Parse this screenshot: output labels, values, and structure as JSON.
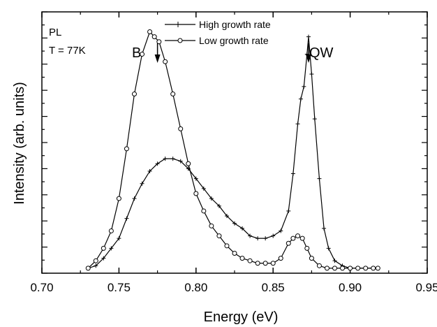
{
  "chart_data": {
    "type": "line",
    "xlabel": "Energy (eV)",
    "ylabel": "Intensity (arb. units)",
    "xlim": [
      0.7,
      0.95
    ],
    "ylim": [
      0,
      1.05
    ],
    "x_ticks": [
      "0.70",
      "0.75",
      "0.80",
      "0.85",
      "0.90",
      "0.95"
    ],
    "y_tick_labels": "none",
    "grid": false,
    "legend_position": "top-center",
    "series": [
      {
        "name": "High growth rate",
        "marker": "plus",
        "color": "#000000",
        "x": [
          0.73,
          0.735,
          0.74,
          0.745,
          0.75,
          0.755,
          0.76,
          0.765,
          0.77,
          0.775,
          0.78,
          0.785,
          0.79,
          0.795,
          0.8,
          0.805,
          0.81,
          0.815,
          0.82,
          0.825,
          0.83,
          0.835,
          0.84,
          0.845,
          0.85,
          0.855,
          0.86,
          0.863,
          0.866,
          0.868,
          0.87,
          0.872,
          0.873,
          0.875,
          0.877,
          0.88,
          0.883,
          0.886,
          0.89,
          0.895,
          0.9,
          0.905,
          0.91,
          0.915,
          0.918
        ],
        "y": [
          0.02,
          0.03,
          0.06,
          0.1,
          0.14,
          0.22,
          0.3,
          0.36,
          0.41,
          0.44,
          0.46,
          0.46,
          0.45,
          0.42,
          0.38,
          0.34,
          0.3,
          0.27,
          0.23,
          0.2,
          0.18,
          0.15,
          0.14,
          0.14,
          0.15,
          0.17,
          0.25,
          0.4,
          0.6,
          0.7,
          0.75,
          0.88,
          0.95,
          0.8,
          0.62,
          0.38,
          0.18,
          0.1,
          0.05,
          0.03,
          0.02,
          0.02,
          0.02,
          0.02,
          0.02
        ]
      },
      {
        "name": "Low growth rate",
        "marker": "open-circle",
        "color": "#000000",
        "x": [
          0.73,
          0.735,
          0.74,
          0.745,
          0.75,
          0.755,
          0.76,
          0.765,
          0.77,
          0.773,
          0.776,
          0.78,
          0.785,
          0.79,
          0.795,
          0.8,
          0.805,
          0.81,
          0.815,
          0.82,
          0.825,
          0.83,
          0.835,
          0.84,
          0.845,
          0.85,
          0.855,
          0.86,
          0.863,
          0.866,
          0.869,
          0.872,
          0.875,
          0.88,
          0.885,
          0.89,
          0.895,
          0.9,
          0.905,
          0.91,
          0.915,
          0.918
        ],
        "y": [
          0.02,
          0.05,
          0.1,
          0.17,
          0.3,
          0.5,
          0.72,
          0.88,
          0.97,
          0.95,
          0.93,
          0.85,
          0.72,
          0.58,
          0.44,
          0.32,
          0.25,
          0.19,
          0.15,
          0.11,
          0.08,
          0.06,
          0.05,
          0.04,
          0.04,
          0.04,
          0.06,
          0.12,
          0.14,
          0.15,
          0.14,
          0.1,
          0.06,
          0.03,
          0.02,
          0.02,
          0.02,
          0.02,
          0.02,
          0.02,
          0.02,
          0.02
        ]
      }
    ],
    "annotations": [
      {
        "text": "PL"
      },
      {
        "text": "T = 77K"
      },
      {
        "text": "B",
        "x": 0.775,
        "arrow": "down"
      },
      {
        "text": "QW",
        "x": 0.873,
        "arrow": "down"
      }
    ]
  }
}
